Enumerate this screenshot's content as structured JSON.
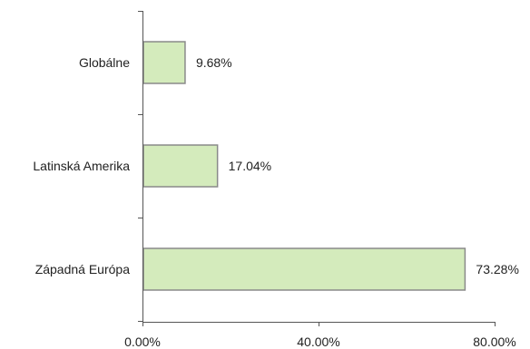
{
  "chart_data": {
    "type": "bar",
    "orientation": "horizontal",
    "categories": [
      "Globálne",
      "Latinská Amerika",
      "Západná Európa"
    ],
    "values": [
      9.68,
      17.04,
      73.28
    ],
    "value_labels": [
      "9.68%",
      "17.04%",
      "73.28%"
    ],
    "xlim": [
      0,
      80
    ],
    "x_ticks": [
      0,
      40,
      80
    ],
    "x_tick_labels": [
      "0.00%",
      "40.00%",
      "80.00%"
    ],
    "title": "",
    "xlabel": "",
    "ylabel": "",
    "grid": false,
    "legend": "none",
    "colors": {
      "bar_fill": "#d4ebbc",
      "bar_stroke": "#8a8a8a",
      "axis": "#555555",
      "text": "#222222"
    }
  }
}
